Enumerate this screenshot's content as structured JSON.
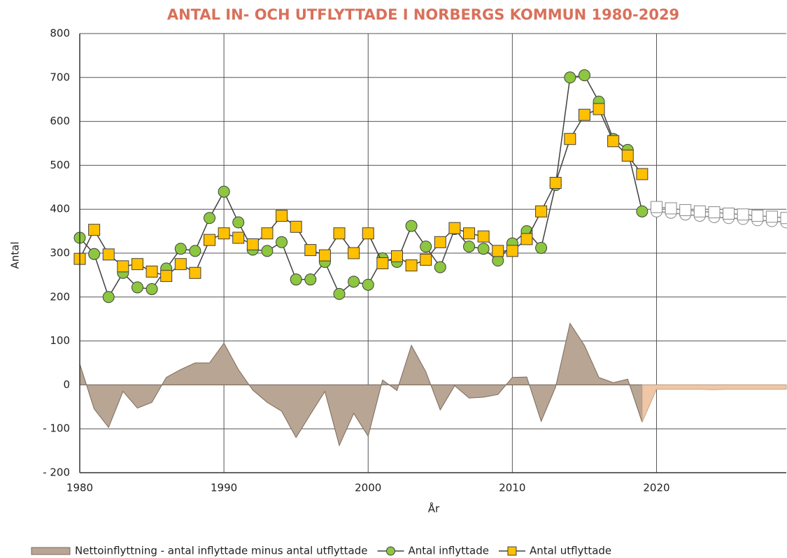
{
  "chart_data": {
    "type": "line",
    "title": "ANTAL IN- OCH UTFLYTTADE I NORBERGS KOMMUN 1980-2029",
    "x_label": "År",
    "y_label": "Antal",
    "x": [
      1980,
      1981,
      1982,
      1983,
      1984,
      1985,
      1986,
      1987,
      1988,
      1989,
      1990,
      1991,
      1992,
      1993,
      1994,
      1995,
      1996,
      1997,
      1998,
      1999,
      2000,
      2001,
      2002,
      2003,
      2004,
      2005,
      2006,
      2007,
      2008,
      2009,
      2010,
      2011,
      2012,
      2013,
      2014,
      2015,
      2016,
      2017,
      2018,
      2019,
      2020,
      2021,
      2022,
      2023,
      2024,
      2025,
      2026,
      2027,
      2028,
      2029
    ],
    "xlim": [
      1980,
      2029
    ],
    "xticks": [
      1980,
      1990,
      2000,
      2010,
      2020
    ],
    "ylim": [
      -200,
      800
    ],
    "yticks": [
      {
        "value": -200,
        "label": "- 200"
      },
      {
        "value": -100,
        "label": "- 100"
      },
      0,
      100,
      200,
      300,
      400,
      500,
      600,
      700,
      800
    ],
    "grid": true,
    "legend": "bottom",
    "series": [
      {
        "name": "Nettoinflyttning - antal inflyttade minus antal utflyttade",
        "type": "area",
        "color": "#b8a594",
        "stroke": "#7a6a5c",
        "values": [
          48,
          -55,
          -97,
          -15,
          -53,
          -40,
          17,
          35,
          50,
          50,
          95,
          35,
          -12,
          -40,
          -60,
          -120,
          -67,
          -15,
          -138,
          -65,
          -117,
          11,
          -13,
          90,
          30,
          -57,
          -2,
          -30,
          -28,
          -22,
          17,
          18,
          -83,
          -5,
          140,
          90,
          17,
          5,
          13,
          -85,
          null,
          null,
          null,
          null,
          null,
          null,
          null,
          null,
          null,
          null
        ]
      },
      {
        "name": "Antal inflyttade",
        "type": "line",
        "marker": "circle",
        "color": "#8dc63f",
        "line_color": "#404040",
        "values": [
          335,
          298,
          200,
          255,
          222,
          218,
          265,
          310,
          305,
          380,
          440,
          370,
          308,
          305,
          325,
          240,
          240,
          280,
          207,
          235,
          228,
          288,
          280,
          362,
          315,
          268,
          355,
          315,
          310,
          283,
          322,
          350,
          312,
          455,
          700,
          705,
          645,
          560,
          535,
          395,
          null,
          null,
          null,
          null,
          null,
          null,
          null,
          null,
          null,
          null
        ]
      },
      {
        "name": "Antal utflyttade",
        "type": "line",
        "marker": "square",
        "color": "#ffc000",
        "line_color": "#404040",
        "values": [
          287,
          353,
          297,
          270,
          275,
          258,
          248,
          275,
          255,
          330,
          345,
          335,
          320,
          345,
          385,
          360,
          307,
          295,
          345,
          300,
          345,
          277,
          293,
          272,
          285,
          325,
          357,
          345,
          338,
          305,
          305,
          332,
          395,
          460,
          560,
          615,
          628,
          555,
          522,
          480,
          null,
          null,
          null,
          null,
          null,
          null,
          null,
          null,
          null,
          null
        ]
      },
      {
        "type": "area",
        "color": "#efc7a6",
        "stroke": "#c9a283",
        "values": [
          null,
          null,
          null,
          null,
          null,
          null,
          null,
          null,
          null,
          null,
          null,
          null,
          null,
          null,
          null,
          null,
          null,
          null,
          null,
          null,
          null,
          null,
          null,
          null,
          null,
          null,
          null,
          null,
          null,
          null,
          null,
          null,
          null,
          null,
          null,
          null,
          null,
          null,
          null,
          -85,
          -10,
          -10,
          -10,
          -10,
          -11,
          -10,
          -10,
          -10,
          -10,
          -10
        ]
      },
      {
        "type": "line",
        "marker": "circle",
        "color": "#ffffff",
        "line_color": "#888888",
        "values": [
          null,
          null,
          null,
          null,
          null,
          null,
          null,
          null,
          null,
          null,
          null,
          null,
          null,
          null,
          null,
          null,
          null,
          null,
          null,
          null,
          null,
          null,
          null,
          null,
          null,
          null,
          null,
          null,
          null,
          null,
          null,
          null,
          null,
          null,
          null,
          null,
          null,
          null,
          null,
          null,
          395,
          392,
          388,
          385,
          382,
          380,
          378,
          375,
          373,
          370
        ]
      },
      {
        "type": "line",
        "marker": "square",
        "color": "#ffffff",
        "line_color": "#888888",
        "values": [
          null,
          null,
          null,
          null,
          null,
          null,
          null,
          null,
          null,
          null,
          null,
          null,
          null,
          null,
          null,
          null,
          null,
          null,
          null,
          null,
          null,
          null,
          null,
          null,
          null,
          null,
          null,
          null,
          null,
          null,
          null,
          null,
          null,
          null,
          null,
          null,
          null,
          null,
          null,
          null,
          405,
          402,
          398,
          395,
          393,
          390,
          388,
          385,
          383,
          380
        ]
      }
    ]
  }
}
